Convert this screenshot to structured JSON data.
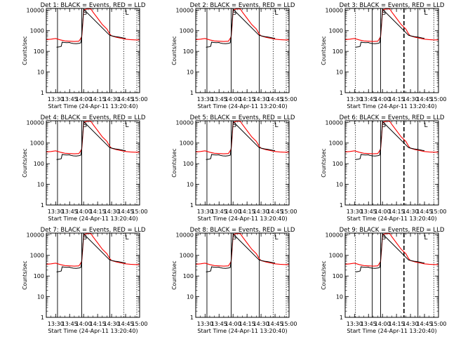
{
  "chart_data": {
    "type": "line",
    "colors": {
      "events": "#000000",
      "lld": "#ff0000",
      "axes": "#000000"
    },
    "common": {
      "xlabel": "Start Time (24-Apr-11 13:20:40)",
      "ylabel": "Counts/sec",
      "yscale": "log",
      "ylim": [
        1,
        12000
      ],
      "yticks": [
        1,
        10,
        100,
        1000,
        10000
      ],
      "ytick_labels": [
        "1",
        "10",
        "100",
        "1000",
        "10000"
      ],
      "xlim": [
        "13:20",
        "15:00"
      ],
      "xticks": [
        "13:30",
        "13:45",
        "14:00",
        "14:15",
        "14:30",
        "14:45",
        "15:00"
      ],
      "markers": [
        {
          "label": "S",
          "time": "14:00"
        },
        {
          "label": "L",
          "time": "14:45"
        }
      ],
      "events_series": [
        [
          "13:31",
          160
        ],
        [
          "13:34",
          165
        ],
        [
          "13:36",
          175
        ],
        [
          "13:37",
          280
        ],
        [
          "13:39",
          270
        ],
        [
          "13:42",
          265
        ],
        [
          "13:45",
          270
        ],
        [
          "13:46",
          255
        ],
        [
          "13:49",
          240
        ],
        [
          "13:52",
          235
        ],
        [
          "13:55",
          245
        ],
        [
          "13:57",
          260
        ],
        [
          "13:58",
          600
        ],
        [
          "13:59",
          2500
        ],
        [
          "14:00",
          11000
        ],
        [
          "14:28",
          600
        ],
        [
          "14:31",
          560
        ],
        [
          "14:34",
          520
        ],
        [
          "14:37",
          500
        ],
        [
          "14:40",
          470
        ],
        [
          "14:43",
          440
        ],
        [
          "14:45",
          430
        ]
      ],
      "lld_series": [
        [
          "13:20",
          370
        ],
        [
          "13:25",
          390
        ],
        [
          "13:30",
          420
        ],
        [
          "13:35",
          360
        ],
        [
          "13:40",
          320
        ],
        [
          "13:45",
          310
        ],
        [
          "13:50",
          300
        ],
        [
          "13:55",
          310
        ],
        [
          "13:58",
          500
        ],
        [
          "13:59",
          2000
        ],
        [
          "14:00",
          9000
        ],
        [
          "14:01",
          10500
        ],
        [
          "14:05",
          11500
        ],
        [
          "14:08",
          11000
        ],
        [
          "14:10",
          8000
        ],
        [
          "14:15",
          4000
        ],
        [
          "14:20",
          2000
        ],
        [
          "14:25",
          1200
        ],
        [
          "14:28",
          700
        ],
        [
          "14:30",
          560
        ],
        [
          "14:35",
          480
        ],
        [
          "14:40",
          430
        ],
        [
          "14:45",
          390
        ],
        [
          "14:50",
          370
        ],
        [
          "14:55",
          360
        ],
        [
          "15:00",
          360
        ]
      ]
    },
    "panels": [
      {
        "title": "Det 1: BLACK = Events, RED = LLD",
        "vlines": [
          {
            "time": "13:32",
            "style": "solid"
          },
          {
            "time": "13:58",
            "style": "solid"
          },
          {
            "time": "14:28",
            "style": "solid"
          },
          {
            "time": "14:43",
            "style": "dotted"
          },
          {
            "time": "14:57",
            "style": "dotted"
          }
        ]
      },
      {
        "title": "Det 2: BLACK = Events, RED = LLD",
        "vlines": [
          {
            "time": "13:32",
            "style": "solid"
          },
          {
            "time": "13:58",
            "style": "solid"
          },
          {
            "time": "14:28",
            "style": "solid"
          },
          {
            "time": "14:43",
            "style": "dotted"
          },
          {
            "time": "14:57",
            "style": "dotted"
          }
        ]
      },
      {
        "title": "Det 3: BLACK = Events, RED = LLD",
        "vlines": [
          {
            "time": "13:31",
            "style": "dotted"
          },
          {
            "time": "13:49",
            "style": "solid"
          },
          {
            "time": "13:58",
            "style": "solid"
          },
          {
            "time": "14:23",
            "style": "dashed"
          },
          {
            "time": "14:38",
            "style": "solid"
          },
          {
            "time": "14:55",
            "style": "dotted"
          }
        ]
      },
      {
        "title": "Det 4: BLACK = Events, RED = LLD",
        "vlines": [
          {
            "time": "13:32",
            "style": "solid"
          },
          {
            "time": "13:58",
            "style": "solid"
          },
          {
            "time": "14:28",
            "style": "solid"
          },
          {
            "time": "14:43",
            "style": "dotted"
          },
          {
            "time": "14:57",
            "style": "dotted"
          }
        ]
      },
      {
        "title": "Det 5: BLACK = Events, RED = LLD",
        "vlines": [
          {
            "time": "13:32",
            "style": "solid"
          },
          {
            "time": "13:58",
            "style": "solid"
          },
          {
            "time": "14:28",
            "style": "solid"
          },
          {
            "time": "14:43",
            "style": "dotted"
          },
          {
            "time": "14:57",
            "style": "dotted"
          }
        ]
      },
      {
        "title": "Det 6: BLACK = Events, RED = LLD",
        "vlines": [
          {
            "time": "13:31",
            "style": "dotted"
          },
          {
            "time": "13:49",
            "style": "solid"
          },
          {
            "time": "13:58",
            "style": "solid"
          },
          {
            "time": "14:23",
            "style": "dashed"
          },
          {
            "time": "14:38",
            "style": "solid"
          },
          {
            "time": "14:55",
            "style": "dotted"
          }
        ]
      },
      {
        "title": "Det 7: BLACK = Events, RED = LLD",
        "vlines": [
          {
            "time": "13:32",
            "style": "solid"
          },
          {
            "time": "13:58",
            "style": "solid"
          },
          {
            "time": "14:28",
            "style": "solid"
          },
          {
            "time": "14:43",
            "style": "dotted"
          },
          {
            "time": "14:57",
            "style": "dotted"
          }
        ]
      },
      {
        "title": "Det 8: BLACK = Events, RED = LLD",
        "vlines": [
          {
            "time": "13:32",
            "style": "solid"
          },
          {
            "time": "13:58",
            "style": "solid"
          },
          {
            "time": "14:28",
            "style": "solid"
          },
          {
            "time": "14:43",
            "style": "dotted"
          },
          {
            "time": "14:57",
            "style": "dotted"
          }
        ]
      },
      {
        "title": "Det 9: BLACK = Events, RED = LLD",
        "vlines": [
          {
            "time": "13:31",
            "style": "dotted"
          },
          {
            "time": "13:49",
            "style": "solid"
          },
          {
            "time": "13:58",
            "style": "solid"
          },
          {
            "time": "14:23",
            "style": "dashed"
          },
          {
            "time": "14:38",
            "style": "solid"
          },
          {
            "time": "14:55",
            "style": "dotted"
          }
        ]
      }
    ]
  }
}
